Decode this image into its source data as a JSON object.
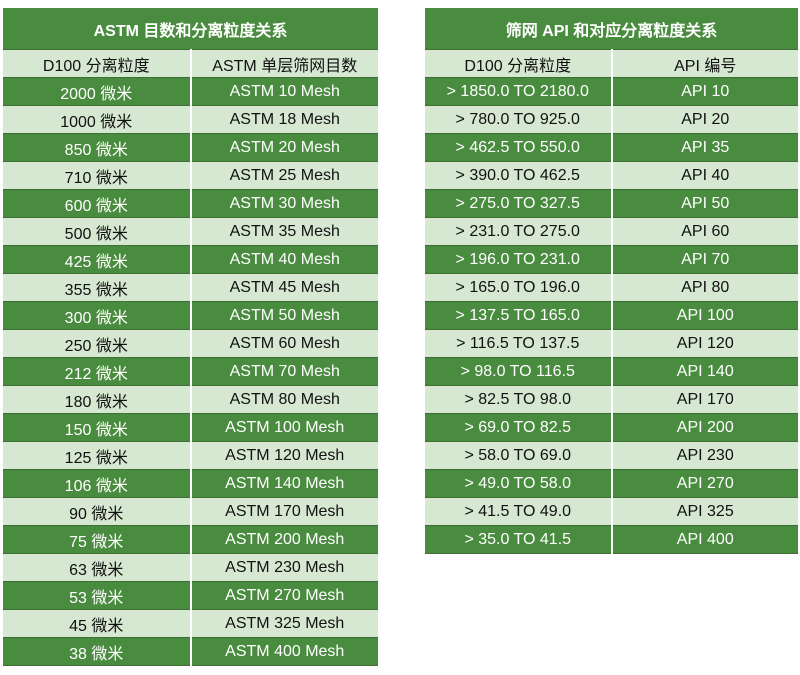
{
  "colors": {
    "dark_green": "#4a8c3f",
    "light_green": "#d6e8d1"
  },
  "astm_table": {
    "title": "ASTM 目数和分离粒度关系",
    "headers": [
      "D100 分离粒度",
      "ASTM 单层筛网目数"
    ],
    "rows": [
      [
        "2000 微米",
        "ASTM 10 Mesh"
      ],
      [
        "1000 微米",
        "ASTM 18 Mesh"
      ],
      [
        "850 微米",
        "ASTM 20 Mesh"
      ],
      [
        "710 微米",
        "ASTM 25 Mesh"
      ],
      [
        "600 微米",
        "ASTM 30 Mesh"
      ],
      [
        "500 微米",
        "ASTM 35 Mesh"
      ],
      [
        "425 微米",
        "ASTM 40 Mesh"
      ],
      [
        "355 微米",
        "ASTM 45 Mesh"
      ],
      [
        "300 微米",
        "ASTM 50 Mesh"
      ],
      [
        "250 微米",
        "ASTM 60 Mesh"
      ],
      [
        "212 微米",
        "ASTM 70 Mesh"
      ],
      [
        "180 微米",
        "ASTM 80 Mesh"
      ],
      [
        "150 微米",
        "ASTM 100 Mesh"
      ],
      [
        "125 微米",
        "ASTM 120 Mesh"
      ],
      [
        "106 微米",
        "ASTM 140 Mesh"
      ],
      [
        "90 微米",
        "ASTM 170 Mesh"
      ],
      [
        "75 微米",
        "ASTM 200 Mesh"
      ],
      [
        "63 微米",
        "ASTM 230 Mesh"
      ],
      [
        "53 微米",
        "ASTM 270 Mesh"
      ],
      [
        "45 微米",
        "ASTM 325 Mesh"
      ],
      [
        "38 微米",
        "ASTM 400 Mesh"
      ]
    ]
  },
  "api_table": {
    "title": "筛网 API 和对应分离粒度关系",
    "headers": [
      "D100 分离粒度",
      "API 编号"
    ],
    "rows": [
      [
        "> 1850.0 TO 2180.0",
        "API 10"
      ],
      [
        "> 780.0 TO 925.0",
        "API 20"
      ],
      [
        "> 462.5 TO 550.0",
        "API 35"
      ],
      [
        "> 390.0 TO 462.5",
        "API 40"
      ],
      [
        "> 275.0 TO 327.5",
        "API 50"
      ],
      [
        "> 231.0 TO 275.0",
        "API 60"
      ],
      [
        "> 196.0 TO 231.0",
        "API 70"
      ],
      [
        "> 165.0 TO 196.0",
        "API 80"
      ],
      [
        "> 137.5 TO 165.0",
        "API 100"
      ],
      [
        "> 116.5 TO 137.5",
        "API 120"
      ],
      [
        "> 98.0 TO 116.5",
        "API 140"
      ],
      [
        "> 82.5 TO 98.0",
        "API 170"
      ],
      [
        "> 69.0 TO 82.5",
        "API 200"
      ],
      [
        "> 58.0 TO 69.0",
        "API 230"
      ],
      [
        "> 49.0 TO 58.0",
        "API 270"
      ],
      [
        "> 41.5 TO 49.0",
        "API 325"
      ],
      [
        "> 35.0 TO 41.5",
        "API 400"
      ]
    ]
  }
}
